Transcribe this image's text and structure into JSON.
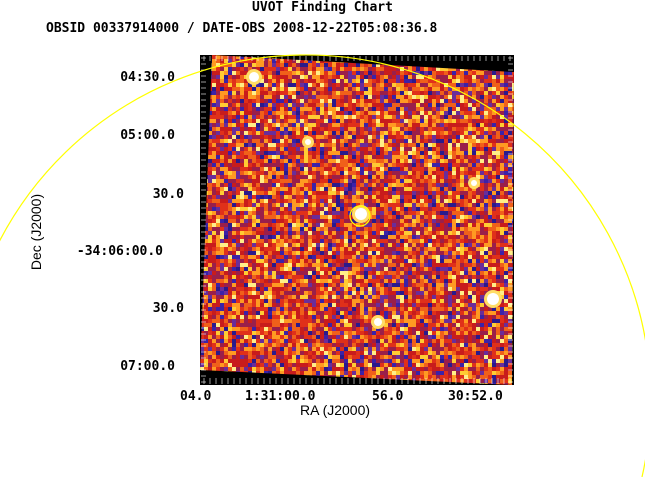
{
  "header": {
    "title": "UVOT Finding Chart",
    "obs_line": "OBSID 00337914000 / DATE-OBS 2008-12-22T05:08:36.8"
  },
  "axes": {
    "x_label": "RA (J2000)",
    "y_label": "Dec (J2000)",
    "x_ticks": [
      "04.0",
      "1:31:00.0",
      "56.0",
      "30:52.0"
    ],
    "y_ticks": [
      "04:30.0",
      "05:00.0",
      "30.0",
      "-34:06:00.0",
      "30.0",
      "07:00.0"
    ]
  },
  "colors": {
    "overlay_circle": "#ffff00",
    "frame_edge": "#000000",
    "image_bg": "#cc2200"
  },
  "image": {
    "type": "heatmap",
    "colormap": "hot-blue",
    "bright_sources": 6
  }
}
